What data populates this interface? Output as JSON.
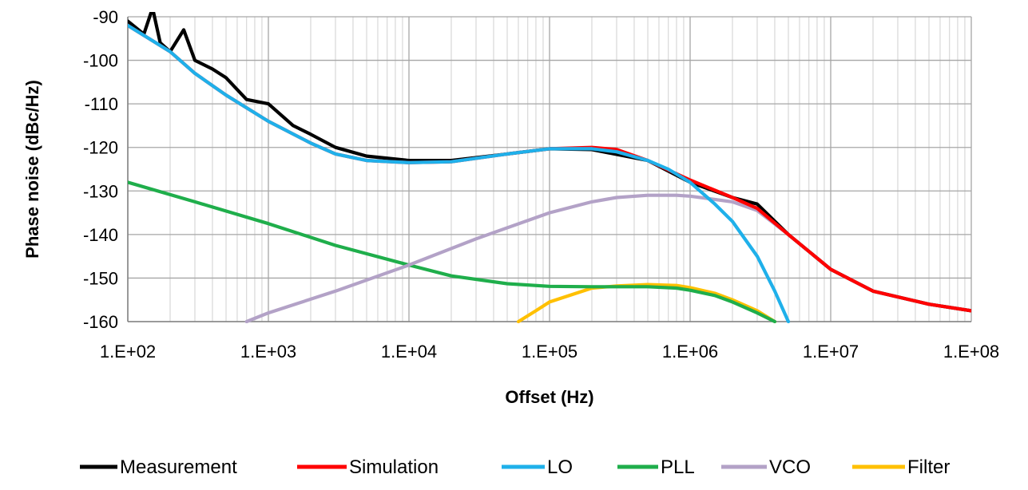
{
  "chart_data": {
    "type": "line",
    "title": "",
    "xlabel": "Offset (Hz)",
    "ylabel": "Phase noise (dBc/Hz)",
    "x_scale": "log",
    "xlim": [
      100,
      100000000
    ],
    "ylim": [
      -160,
      -90
    ],
    "x_ticks": [
      100,
      1000,
      10000,
      100000,
      1000000,
      10000000,
      100000000
    ],
    "x_tick_labels": [
      "1.E+02",
      "1.E+03",
      "1.E+04",
      "1.E+05",
      "1.E+06",
      "1.E+07",
      "1.E+08"
    ],
    "y_ticks": [
      -90,
      -100,
      -110,
      -120,
      -130,
      -140,
      -150,
      -160
    ],
    "y_tick_labels": [
      "-90",
      "-100",
      "-110",
      "-120",
      "-130",
      "-140",
      "-150",
      "-160"
    ],
    "grid": true,
    "minor_grid": true,
    "legend_position": "bottom",
    "series": [
      {
        "name": "Measurement",
        "color": "#000000",
        "x": [
          100,
          130,
          150,
          170,
          200,
          250,
          300,
          400,
          500,
          700,
          1000,
          1500,
          2000,
          3000,
          5000,
          10000,
          20000,
          50000,
          100000,
          200000,
          500000,
          1000000,
          2000000,
          3000000,
          5000000,
          10000000,
          20000000,
          50000000,
          100000000
        ],
        "y": [
          -91,
          -94,
          -88,
          -96,
          -98,
          -93,
          -100,
          -102,
          -104,
          -109,
          -110,
          -115,
          -117,
          -120,
          -122,
          -123,
          -123,
          -121.5,
          -120.3,
          -120.5,
          -123,
          -128,
          -131.5,
          -133,
          -140,
          -148,
          -153,
          -156,
          -157.5
        ]
      },
      {
        "name": "Simulation",
        "color": "#ff0000",
        "x": [
          100,
          200,
          300,
          500,
          1000,
          2000,
          3000,
          5000,
          10000,
          20000,
          50000,
          100000,
          200000,
          300000,
          500000,
          1000000,
          2000000,
          3000000,
          5000000,
          10000000,
          20000000,
          50000000,
          100000000
        ],
        "y": [
          -92,
          -98,
          -103,
          -108,
          -114,
          -119,
          -121.5,
          -123,
          -123.5,
          -123.3,
          -121.5,
          -120.3,
          -120,
          -120.5,
          -123,
          -127.5,
          -131.5,
          -134,
          -140,
          -148,
          -153,
          -156,
          -157.5
        ]
      },
      {
        "name": "LO",
        "color": "#1fb0ea",
        "x": [
          100,
          200,
          300,
          500,
          1000,
          2000,
          3000,
          5000,
          10000,
          20000,
          50000,
          100000,
          200000,
          300000,
          500000,
          700000,
          1000000,
          1500000,
          2000000,
          3000000,
          4000000,
          5000000
        ],
        "y": [
          -92,
          -98,
          -103,
          -108,
          -114,
          -119,
          -121.5,
          -123,
          -123.5,
          -123.3,
          -121.5,
          -120.3,
          -120.3,
          -121,
          -123,
          -125,
          -128,
          -133,
          -137,
          -145,
          -153,
          -160
        ]
      },
      {
        "name": "PLL",
        "color": "#1fae4b",
        "x": [
          100,
          300,
          1000,
          3000,
          10000,
          20000,
          50000,
          100000,
          200000,
          500000,
          800000,
          1000000,
          1500000,
          2000000,
          3000000,
          4000000
        ],
        "y": [
          -128,
          -132.5,
          -137.5,
          -142.5,
          -147,
          -149.5,
          -151.3,
          -151.9,
          -152,
          -152,
          -152.3,
          -152.8,
          -154,
          -155.5,
          -158,
          -160
        ]
      },
      {
        "name": "VCO",
        "color": "#b3a2c7",
        "x": [
          700,
          1000,
          3000,
          10000,
          30000,
          100000,
          200000,
          300000,
          500000,
          800000,
          1000000,
          2000000,
          3000000,
          5000000,
          10000000,
          20000000,
          50000000,
          100000000
        ],
        "y": [
          -160,
          -158,
          -153,
          -147,
          -141,
          -135,
          -132.5,
          -131.5,
          -131,
          -131,
          -131.2,
          -132.5,
          -134.5,
          -140,
          -148,
          -153,
          -156,
          -157.5
        ]
      },
      {
        "name": "Filter",
        "color": "#ffc000",
        "x": [
          60000,
          80000,
          100000,
          200000,
          300000,
          500000,
          800000,
          1000000,
          1500000,
          2000000,
          3000000,
          4000000
        ],
        "y": [
          -160,
          -157.5,
          -155.5,
          -152.3,
          -151.8,
          -151.5,
          -151.7,
          -152.2,
          -153.5,
          -155,
          -157.5,
          -160
        ]
      }
    ]
  }
}
